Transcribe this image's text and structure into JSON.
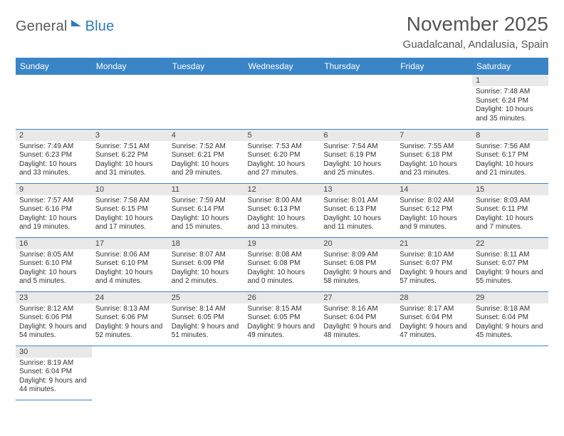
{
  "brand": {
    "part1": "General",
    "part2": "Blue"
  },
  "title": "November 2025",
  "location": "Guadalcanal, Andalusia, Spain",
  "colors": {
    "header_bg": "#3a85c6",
    "header_text": "#ffffff",
    "daynum_bg": "#e9e9e9",
    "border": "#3a85c6",
    "brand_gray": "#5a5a5a",
    "brand_blue": "#2b7bbd"
  },
  "dayHeaders": [
    "Sunday",
    "Monday",
    "Tuesday",
    "Wednesday",
    "Thursday",
    "Friday",
    "Saturday"
  ],
  "weeks": [
    [
      null,
      null,
      null,
      null,
      null,
      null,
      {
        "n": "1",
        "sunrise": "7:48 AM",
        "sunset": "6:24 PM",
        "daylight": "10 hours and 35 minutes."
      }
    ],
    [
      {
        "n": "2",
        "sunrise": "7:49 AM",
        "sunset": "6:23 PM",
        "daylight": "10 hours and 33 minutes."
      },
      {
        "n": "3",
        "sunrise": "7:51 AM",
        "sunset": "6:22 PM",
        "daylight": "10 hours and 31 minutes."
      },
      {
        "n": "4",
        "sunrise": "7:52 AM",
        "sunset": "6:21 PM",
        "daylight": "10 hours and 29 minutes."
      },
      {
        "n": "5",
        "sunrise": "7:53 AM",
        "sunset": "6:20 PM",
        "daylight": "10 hours and 27 minutes."
      },
      {
        "n": "6",
        "sunrise": "7:54 AM",
        "sunset": "6:19 PM",
        "daylight": "10 hours and 25 minutes."
      },
      {
        "n": "7",
        "sunrise": "7:55 AM",
        "sunset": "6:18 PM",
        "daylight": "10 hours and 23 minutes."
      },
      {
        "n": "8",
        "sunrise": "7:56 AM",
        "sunset": "6:17 PM",
        "daylight": "10 hours and 21 minutes."
      }
    ],
    [
      {
        "n": "9",
        "sunrise": "7:57 AM",
        "sunset": "6:16 PM",
        "daylight": "10 hours and 19 minutes."
      },
      {
        "n": "10",
        "sunrise": "7:58 AM",
        "sunset": "6:15 PM",
        "daylight": "10 hours and 17 minutes."
      },
      {
        "n": "11",
        "sunrise": "7:59 AM",
        "sunset": "6:14 PM",
        "daylight": "10 hours and 15 minutes."
      },
      {
        "n": "12",
        "sunrise": "8:00 AM",
        "sunset": "6:13 PM",
        "daylight": "10 hours and 13 minutes."
      },
      {
        "n": "13",
        "sunrise": "8:01 AM",
        "sunset": "6:13 PM",
        "daylight": "10 hours and 11 minutes."
      },
      {
        "n": "14",
        "sunrise": "8:02 AM",
        "sunset": "6:12 PM",
        "daylight": "10 hours and 9 minutes."
      },
      {
        "n": "15",
        "sunrise": "8:03 AM",
        "sunset": "6:11 PM",
        "daylight": "10 hours and 7 minutes."
      }
    ],
    [
      {
        "n": "16",
        "sunrise": "8:05 AM",
        "sunset": "6:10 PM",
        "daylight": "10 hours and 5 minutes."
      },
      {
        "n": "17",
        "sunrise": "8:06 AM",
        "sunset": "6:10 PM",
        "daylight": "10 hours and 4 minutes."
      },
      {
        "n": "18",
        "sunrise": "8:07 AM",
        "sunset": "6:09 PM",
        "daylight": "10 hours and 2 minutes."
      },
      {
        "n": "19",
        "sunrise": "8:08 AM",
        "sunset": "6:08 PM",
        "daylight": "10 hours and 0 minutes."
      },
      {
        "n": "20",
        "sunrise": "8:09 AM",
        "sunset": "6:08 PM",
        "daylight": "9 hours and 58 minutes."
      },
      {
        "n": "21",
        "sunrise": "8:10 AM",
        "sunset": "6:07 PM",
        "daylight": "9 hours and 57 minutes."
      },
      {
        "n": "22",
        "sunrise": "8:11 AM",
        "sunset": "6:07 PM",
        "daylight": "9 hours and 55 minutes."
      }
    ],
    [
      {
        "n": "23",
        "sunrise": "8:12 AM",
        "sunset": "6:06 PM",
        "daylight": "9 hours and 54 minutes."
      },
      {
        "n": "24",
        "sunrise": "8:13 AM",
        "sunset": "6:06 PM",
        "daylight": "9 hours and 52 minutes."
      },
      {
        "n": "25",
        "sunrise": "8:14 AM",
        "sunset": "6:05 PM",
        "daylight": "9 hours and 51 minutes."
      },
      {
        "n": "26",
        "sunrise": "8:15 AM",
        "sunset": "6:05 PM",
        "daylight": "9 hours and 49 minutes."
      },
      {
        "n": "27",
        "sunrise": "8:16 AM",
        "sunset": "6:04 PM",
        "daylight": "9 hours and 48 minutes."
      },
      {
        "n": "28",
        "sunrise": "8:17 AM",
        "sunset": "6:04 PM",
        "daylight": "9 hours and 47 minutes."
      },
      {
        "n": "29",
        "sunrise": "8:18 AM",
        "sunset": "6:04 PM",
        "daylight": "9 hours and 45 minutes."
      }
    ],
    [
      {
        "n": "30",
        "sunrise": "8:19 AM",
        "sunset": "6:04 PM",
        "daylight": "9 hours and 44 minutes."
      },
      null,
      null,
      null,
      null,
      null,
      null
    ]
  ],
  "labels": {
    "sunrise": "Sunrise: ",
    "sunset": "Sunset: ",
    "daylight": "Daylight: "
  }
}
